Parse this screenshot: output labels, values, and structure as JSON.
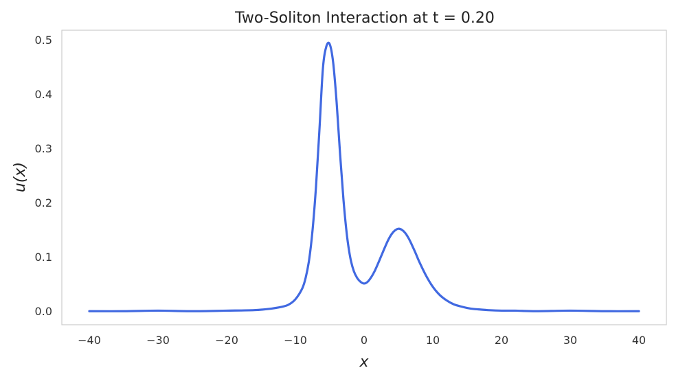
{
  "chart_data": {
    "type": "line",
    "title": "Two-Soliton Interaction at t = 0.20",
    "xlabel": "x",
    "ylabel": "u(x)",
    "xlim": [
      -44,
      44
    ],
    "ylim": [
      -0.025,
      0.518
    ],
    "grid": false,
    "xticks": [
      -40,
      -30,
      -20,
      -10,
      0,
      10,
      20,
      30,
      40
    ],
    "xtick_labels": [
      "−40",
      "−30",
      "−20",
      "−10",
      "0",
      "10",
      "20",
      "30",
      "40"
    ],
    "yticks": [
      0.0,
      0.1,
      0.2,
      0.3,
      0.4,
      0.5
    ],
    "ytick_labels": [
      "0.0",
      "0.1",
      "0.2",
      "0.3",
      "0.4",
      "0.5"
    ],
    "series": [
      {
        "color": "#4169e1",
        "x": [
          -40,
          -35,
          -30,
          -25,
          -20,
          -16,
          -14,
          -12,
          -11,
          -10,
          -9,
          -8.5,
          -8,
          -7.5,
          -7,
          -6.5,
          -6,
          -5.5,
          -5,
          -4.5,
          -4,
          -3.5,
          -3,
          -2.5,
          -2,
          -1.5,
          -1,
          -0.5,
          0,
          0.5,
          1,
          1.5,
          2,
          2.5,
          3,
          3.5,
          4,
          4.5,
          5,
          5.5,
          6,
          6.5,
          7,
          7.5,
          8,
          9,
          10,
          11,
          12,
          13,
          14,
          15,
          16,
          17,
          18,
          20,
          22,
          25,
          30,
          35,
          40
        ],
        "y": [
          0.0,
          0.0,
          0.001,
          0.0,
          0.001,
          0.002,
          0.004,
          0.008,
          0.012,
          0.022,
          0.042,
          0.062,
          0.095,
          0.15,
          0.23,
          0.335,
          0.447,
          0.488,
          0.492,
          0.458,
          0.385,
          0.29,
          0.205,
          0.14,
          0.098,
          0.074,
          0.061,
          0.054,
          0.051,
          0.054,
          0.062,
          0.073,
          0.087,
          0.102,
          0.117,
          0.131,
          0.142,
          0.149,
          0.152,
          0.15,
          0.144,
          0.134,
          0.121,
          0.107,
          0.092,
          0.066,
          0.045,
          0.03,
          0.02,
          0.013,
          0.009,
          0.006,
          0.004,
          0.003,
          0.002,
          0.001,
          0.001,
          0.0,
          0.001,
          0.0,
          0.0
        ]
      }
    ]
  }
}
